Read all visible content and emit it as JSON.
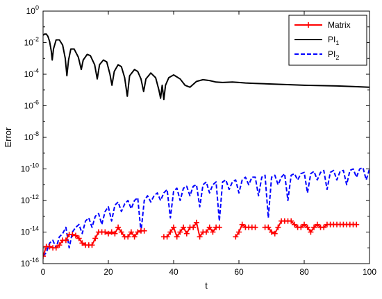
{
  "chart_data": {
    "type": "line",
    "xlabel": "t",
    "ylabel": "Error",
    "yscale": "log",
    "xlim": [
      0,
      100
    ],
    "ylim": [
      1e-16,
      1
    ],
    "x_ticks": [
      0,
      20,
      40,
      60,
      80,
      100
    ],
    "x_tick_labels": [
      "0",
      "20",
      "40",
      "60",
      "80",
      "100"
    ],
    "y_ticks": [
      1e-16,
      1e-14,
      1e-12,
      1e-10,
      1e-08,
      1e-06,
      0.0001,
      0.01,
      1
    ],
    "y_tick_labels": [
      {
        "base": "10",
        "exp": "-16"
      },
      {
        "base": "10",
        "exp": "-14"
      },
      {
        "base": "10",
        "exp": "-12"
      },
      {
        "base": "10",
        "exp": "-10"
      },
      {
        "base": "10",
        "exp": "-8"
      },
      {
        "base": "10",
        "exp": "-6"
      },
      {
        "base": "10",
        "exp": "-4"
      },
      {
        "base": "10",
        "exp": "-2"
      },
      {
        "base": "10",
        "exp": "0"
      }
    ],
    "grid": false,
    "legend_position": "top-right",
    "series": [
      {
        "name": "Matrix",
        "name_sub": "",
        "color": "#ff0000",
        "style": "solid",
        "marker": "plus",
        "segments": [
          [
            [
              0,
              3e-16
            ],
            [
              1,
              1.2e-15
            ],
            [
              2,
              1.2e-15
            ],
            [
              3,
              1e-15
            ],
            [
              4,
              1e-15
            ],
            [
              5,
              1.5e-15
            ],
            [
              6,
              3e-15
            ],
            [
              7,
              3e-15
            ],
            [
              8,
              7e-15
            ],
            [
              9,
              7e-15
            ],
            [
              10,
              6e-15
            ],
            [
              11,
              4e-15
            ],
            [
              12,
              2e-15
            ],
            [
              13,
              1.5e-15
            ],
            [
              14,
              1.5e-15
            ],
            [
              15,
              1.5e-15
            ],
            [
              16,
              4e-15
            ],
            [
              17,
              1e-14
            ],
            [
              18,
              1e-14
            ],
            [
              19,
              1e-14
            ],
            [
              20,
              8e-15
            ],
            [
              21,
              1e-14
            ],
            [
              22,
              8e-15
            ],
            [
              23,
              2e-14
            ],
            [
              24,
              1e-14
            ],
            [
              25,
              5e-15
            ],
            [
              26,
              5e-15
            ],
            [
              27,
              1e-14
            ],
            [
              28,
              5e-15
            ],
            [
              29,
              1e-14
            ],
            [
              30,
              1.2e-14
            ],
            [
              31,
              1.2e-14
            ]
          ],
          [
            [
              37,
              5e-15
            ],
            [
              38,
              5e-15
            ],
            [
              39,
              1e-14
            ],
            [
              40,
              2e-14
            ],
            [
              41,
              5e-15
            ],
            [
              42,
              1e-14
            ],
            [
              43,
              2e-14
            ],
            [
              44,
              8e-15
            ],
            [
              45,
              2e-14
            ],
            [
              46,
              2e-14
            ],
            [
              47,
              4e-14
            ],
            [
              48,
              5e-15
            ],
            [
              49,
              1e-14
            ],
            [
              50,
              1e-14
            ],
            [
              51,
              2e-14
            ],
            [
              52,
              1e-14
            ],
            [
              53,
              2e-14
            ],
            [
              54,
              2e-14
            ]
          ],
          [
            [
              59,
              5e-15
            ],
            [
              60,
              1e-14
            ],
            [
              61,
              3e-14
            ],
            [
              62,
              2e-14
            ],
            [
              63,
              2e-14
            ],
            [
              64,
              2e-14
            ],
            [
              65,
              2e-14
            ]
          ],
          [
            [
              68,
              2e-14
            ],
            [
              69,
              2e-14
            ],
            [
              70,
              1e-14
            ],
            [
              71,
              8e-15
            ],
            [
              72,
              2e-14
            ],
            [
              73,
              5e-14
            ],
            [
              74,
              5e-14
            ],
            [
              75,
              5e-14
            ],
            [
              76,
              5e-14
            ],
            [
              77,
              3e-14
            ],
            [
              78,
              2e-14
            ],
            [
              79,
              2e-14
            ],
            [
              80,
              3e-14
            ],
            [
              81,
              2e-14
            ],
            [
              82,
              1e-14
            ],
            [
              83,
              2e-14
            ],
            [
              84,
              3e-14
            ],
            [
              85,
              2e-14
            ],
            [
              86,
              2e-14
            ],
            [
              87,
              3e-14
            ],
            [
              88,
              3e-14
            ],
            [
              89,
              3e-14
            ],
            [
              90,
              3e-14
            ],
            [
              91,
              3e-14
            ],
            [
              92,
              3e-14
            ],
            [
              93,
              3e-14
            ],
            [
              94,
              3e-14
            ],
            [
              95,
              3e-14
            ],
            [
              96,
              3e-14
            ]
          ]
        ]
      },
      {
        "name": "PI",
        "name_sub": "1",
        "color": "#000000",
        "style": "solid",
        "marker": "none",
        "points": [
          [
            0,
            0.03
          ],
          [
            0.5,
            0.035
          ],
          [
            1,
            0.035
          ],
          [
            1.5,
            0.025
          ],
          [
            2,
            0.012
          ],
          [
            2.5,
            0.003
          ],
          [
            2.8,
            0.0008
          ],
          [
            3.2,
            0.004
          ],
          [
            4,
            0.015
          ],
          [
            5,
            0.015
          ],
          [
            6,
            0.007
          ],
          [
            6.8,
            0.001
          ],
          [
            7.3,
            8e-05
          ],
          [
            7.8,
            0.0008
          ],
          [
            8.5,
            0.004
          ],
          [
            9.5,
            0.004
          ],
          [
            10.8,
            0.0012
          ],
          [
            11.7,
            0.0002
          ],
          [
            12.3,
            0.0008
          ],
          [
            13.5,
            0.0018
          ],
          [
            14.5,
            0.0015
          ],
          [
            15.8,
            0.0004
          ],
          [
            16.6,
            5e-05
          ],
          [
            17.3,
            0.0004
          ],
          [
            18.5,
            0.0008
          ],
          [
            19.5,
            0.0006
          ],
          [
            20.5,
            0.0001
          ],
          [
            21.1,
            2e-05
          ],
          [
            21.8,
            0.00015
          ],
          [
            23,
            0.0004
          ],
          [
            24,
            0.0003
          ],
          [
            25,
            6e-05
          ],
          [
            25.8,
            4e-06
          ],
          [
            26.5,
            8e-05
          ],
          [
            28,
            0.0002
          ],
          [
            29,
            0.00015
          ],
          [
            30,
            5e-05
          ],
          [
            30.8,
            8e-06
          ],
          [
            31.5,
            5e-05
          ],
          [
            33,
            0.00012
          ],
          [
            34.5,
            6e-05
          ],
          [
            35.5,
            1e-05
          ],
          [
            36,
            3e-06
          ],
          [
            36.5,
            2e-05
          ],
          [
            37,
            2.5e-06
          ],
          [
            37.5,
            2e-05
          ],
          [
            38.5,
            6e-05
          ],
          [
            40,
            9e-05
          ],
          [
            42,
            5e-05
          ],
          [
            43.5,
            2e-05
          ],
          [
            45,
            1.5e-05
          ],
          [
            47,
            3.5e-05
          ],
          [
            49,
            4.5e-05
          ],
          [
            51,
            4e-05
          ],
          [
            53,
            3.2e-05
          ],
          [
            55,
            3e-05
          ],
          [
            58,
            3.2e-05
          ],
          [
            60,
            3e-05
          ],
          [
            62,
            2.8e-05
          ],
          [
            65,
            2.6e-05
          ],
          [
            70,
            2.4e-05
          ],
          [
            75,
            2.2e-05
          ],
          [
            80,
            2e-05
          ],
          [
            85,
            1.9e-05
          ],
          [
            90,
            1.8e-05
          ],
          [
            95,
            1.65e-05
          ],
          [
            100,
            1.5e-05
          ]
        ]
      },
      {
        "name": "PI",
        "name_sub": "2",
        "color": "#0000ff",
        "style": "dashed",
        "marker": "none",
        "points": [
          [
            0,
            3e-16
          ],
          [
            1,
            5e-16
          ],
          [
            2,
            2e-15
          ],
          [
            3,
            3e-15
          ],
          [
            4,
            1e-15
          ],
          [
            5,
            5e-15
          ],
          [
            6,
            8e-15
          ],
          [
            7,
            2e-14
          ],
          [
            8,
            1e-15
          ],
          [
            9,
            1e-14
          ],
          [
            10,
            2e-14
          ],
          [
            11,
            3e-14
          ],
          [
            12,
            8e-15
          ],
          [
            13,
            5e-14
          ],
          [
            14,
            8e-14
          ],
          [
            15,
            2e-14
          ],
          [
            16,
            1e-13
          ],
          [
            17,
            1.5e-13
          ],
          [
            18,
            3e-14
          ],
          [
            19,
            2e-13
          ],
          [
            20,
            4e-13
          ],
          [
            21,
            5e-14
          ],
          [
            22,
            5e-13
          ],
          [
            23,
            8e-13
          ],
          [
            24,
            2e-13
          ],
          [
            25,
            6e-13
          ],
          [
            26,
            1e-12
          ],
          [
            27,
            3e-13
          ],
          [
            28,
            1e-12
          ],
          [
            29,
            1.5e-12
          ],
          [
            30,
            1e-14
          ],
          [
            31,
            1e-12
          ],
          [
            32,
            2e-12
          ],
          [
            33,
            8e-13
          ],
          [
            34,
            2e-12
          ],
          [
            35,
            3e-12
          ],
          [
            36,
            1e-12
          ],
          [
            37,
            3e-12
          ],
          [
            38,
            5e-12
          ],
          [
            39,
            8e-14
          ],
          [
            40,
            4e-12
          ],
          [
            41,
            6e-12
          ],
          [
            42,
            1e-12
          ],
          [
            43,
            6e-12
          ],
          [
            44,
            8e-12
          ],
          [
            45,
            2e-12
          ],
          [
            46,
            8e-12
          ],
          [
            47,
            1e-11
          ],
          [
            48,
            4e-13
          ],
          [
            49,
            1e-11
          ],
          [
            50,
            1.5e-11
          ],
          [
            51,
            3e-12
          ],
          [
            52,
            1e-11
          ],
          [
            53,
            1.5e-11
          ],
          [
            54,
            5e-14
          ],
          [
            55,
            1.5e-11
          ],
          [
            56,
            2e-11
          ],
          [
            57,
            5e-12
          ],
          [
            58,
            1.5e-11
          ],
          [
            59,
            2e-11
          ],
          [
            60,
            3e-12
          ],
          [
            61,
            2e-11
          ],
          [
            62,
            3e-11
          ],
          [
            63,
            1e-11
          ],
          [
            64,
            3e-11
          ],
          [
            65,
            3e-11
          ],
          [
            66,
            2e-12
          ],
          [
            67,
            3e-11
          ],
          [
            68,
            4e-11
          ],
          [
            69,
            8e-14
          ],
          [
            70,
            3e-11
          ],
          [
            71,
            4e-11
          ],
          [
            72,
            1e-11
          ],
          [
            73,
            3e-11
          ],
          [
            74,
            5e-11
          ],
          [
            75,
            1e-12
          ],
          [
            76,
            4e-11
          ],
          [
            77,
            5e-11
          ],
          [
            78,
            2e-11
          ],
          [
            79,
            5e-11
          ],
          [
            80,
            6e-11
          ],
          [
            81,
            3e-12
          ],
          [
            82,
            5e-11
          ],
          [
            83,
            7e-11
          ],
          [
            84,
            2e-11
          ],
          [
            85,
            6e-11
          ],
          [
            86,
            8e-11
          ],
          [
            87,
            5e-12
          ],
          [
            88,
            6e-11
          ],
          [
            89,
            8e-11
          ],
          [
            90,
            2e-11
          ],
          [
            91,
            7e-11
          ],
          [
            92,
            8e-11
          ],
          [
            93,
            1e-11
          ],
          [
            94,
            8e-11
          ],
          [
            95,
            1e-10
          ],
          [
            96,
            3e-11
          ],
          [
            97,
            1e-10
          ],
          [
            98,
            1.2e-10
          ],
          [
            99,
            2e-11
          ],
          [
            100,
            1e-10
          ]
        ]
      }
    ]
  }
}
